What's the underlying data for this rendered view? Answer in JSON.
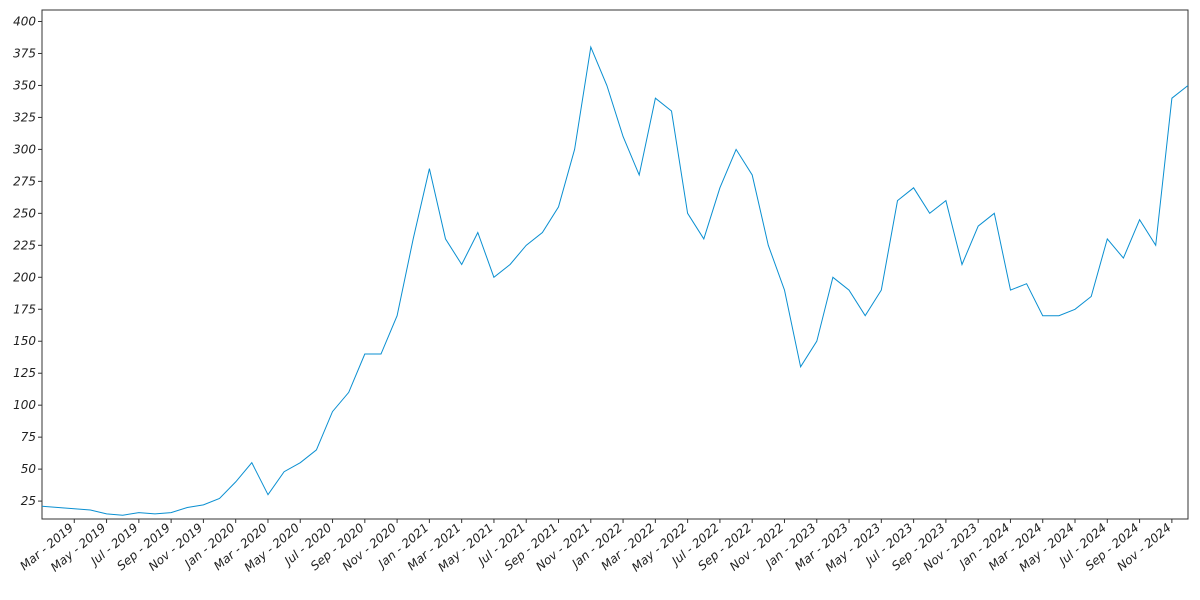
{
  "chart_data": {
    "type": "line",
    "x": [
      "2019-01",
      "2019-02",
      "2019-03",
      "2019-04",
      "2019-05",
      "2019-06",
      "2019-07",
      "2019-08",
      "2019-09",
      "2019-10",
      "2019-11",
      "2019-12",
      "2020-01",
      "2020-02",
      "2020-03",
      "2020-04",
      "2020-05",
      "2020-06",
      "2020-07",
      "2020-08",
      "2020-09",
      "2020-10",
      "2020-11",
      "2020-12",
      "2021-01",
      "2021-02",
      "2021-03",
      "2021-04",
      "2021-05",
      "2021-06",
      "2021-07",
      "2021-08",
      "2021-09",
      "2021-10",
      "2021-11",
      "2021-12",
      "2022-01",
      "2022-02",
      "2022-03",
      "2022-04",
      "2022-05",
      "2022-06",
      "2022-07",
      "2022-08",
      "2022-09",
      "2022-10",
      "2022-11",
      "2022-12",
      "2023-01",
      "2023-02",
      "2023-03",
      "2023-04",
      "2023-05",
      "2023-06",
      "2023-07",
      "2023-08",
      "2023-09",
      "2023-10",
      "2023-11",
      "2023-12",
      "2024-01",
      "2024-02",
      "2024-03",
      "2024-04",
      "2024-05",
      "2024-06",
      "2024-07",
      "2024-08",
      "2024-09",
      "2024-10",
      "2024-11",
      "2024-12"
    ],
    "series": [
      {
        "color": "#0a8fd1",
        "values": [
          21,
          20,
          19,
          18,
          15,
          14,
          16,
          15,
          16,
          20,
          22,
          27,
          40,
          55,
          30,
          48,
          55,
          65,
          95,
          110,
          140,
          140,
          170,
          230,
          285,
          230,
          210,
          235,
          200,
          210,
          225,
          235,
          255,
          300,
          380,
          350,
          310,
          280,
          340,
          330,
          250,
          230,
          270,
          300,
          280,
          225,
          190,
          130,
          150,
          200,
          190,
          170,
          190,
          260,
          270,
          250,
          260,
          210,
          240,
          250,
          190,
          195,
          170,
          170,
          175,
          185,
          230,
          215,
          245,
          225,
          340,
          350
        ]
      }
    ],
    "xlim": [
      "2019-01",
      "2024-12"
    ],
    "xticks": [
      {
        "value": "2019-03",
        "label": "Mar - 2019"
      },
      {
        "value": "2019-05",
        "label": "May - 2019"
      },
      {
        "value": "2019-07",
        "label": "Jul - 2019"
      },
      {
        "value": "2019-09",
        "label": "Sep - 2019"
      },
      {
        "value": "2019-11",
        "label": "Nov - 2019"
      },
      {
        "value": "2020-01",
        "label": "Jan - 2020"
      },
      {
        "value": "2020-03",
        "label": "Mar - 2020"
      },
      {
        "value": "2020-05",
        "label": "May - 2020"
      },
      {
        "value": "2020-07",
        "label": "Jul - 2020"
      },
      {
        "value": "2020-09",
        "label": "Sep - 2020"
      },
      {
        "value": "2020-11",
        "label": "Nov - 2020"
      },
      {
        "value": "2021-01",
        "label": "Jan - 2021"
      },
      {
        "value": "2021-03",
        "label": "Mar - 2021"
      },
      {
        "value": "2021-05",
        "label": "May - 2021"
      },
      {
        "value": "2021-07",
        "label": "Jul - 2021"
      },
      {
        "value": "2021-09",
        "label": "Sep - 2021"
      },
      {
        "value": "2021-11",
        "label": "Nov - 2021"
      },
      {
        "value": "2022-01",
        "label": "Jan - 2022"
      },
      {
        "value": "2022-03",
        "label": "Mar - 2022"
      },
      {
        "value": "2022-05",
        "label": "May - 2022"
      },
      {
        "value": "2022-07",
        "label": "Jul - 2022"
      },
      {
        "value": "2022-09",
        "label": "Sep - 2022"
      },
      {
        "value": "2022-11",
        "label": "Nov - 2022"
      },
      {
        "value": "2023-01",
        "label": "Jan - 2023"
      },
      {
        "value": "2023-03",
        "label": "Mar - 2023"
      },
      {
        "value": "2023-05",
        "label": "May - 2023"
      },
      {
        "value": "2023-07",
        "label": "Jul - 2023"
      },
      {
        "value": "2023-09",
        "label": "Sep - 2023"
      },
      {
        "value": "2023-11",
        "label": "Nov - 2023"
      },
      {
        "value": "2024-01",
        "label": "Jan - 2024"
      },
      {
        "value": "2024-03",
        "label": "Mar - 2024"
      },
      {
        "value": "2024-05",
        "label": "May - 2024"
      },
      {
        "value": "2024-07",
        "label": "Jul - 2024"
      },
      {
        "value": "2024-09",
        "label": "Sep - 2024"
      },
      {
        "value": "2024-11",
        "label": "Nov - 2024"
      }
    ],
    "ylim": [
      11,
      409
    ],
    "yticks": [
      25,
      50,
      75,
      100,
      125,
      150,
      175,
      200,
      225,
      250,
      275,
      300,
      325,
      350,
      375,
      400
    ],
    "grid": false
  }
}
